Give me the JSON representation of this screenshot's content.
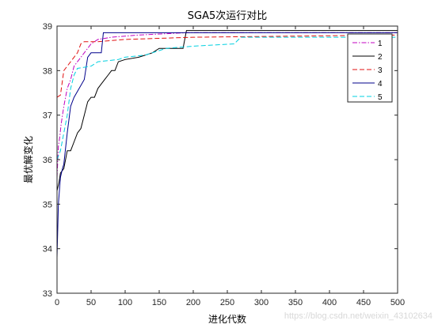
{
  "chart_data": {
    "type": "line",
    "title": "SGA5次运行对比",
    "xlabel": "进化代数",
    "ylabel": "最优解变化",
    "xlim": [
      0,
      500
    ],
    "ylim": [
      33,
      39
    ],
    "xticks": [
      0,
      50,
      100,
      150,
      200,
      250,
      300,
      350,
      400,
      450,
      500
    ],
    "yticks": [
      33,
      34,
      35,
      36,
      37,
      38,
      39
    ],
    "grid": false,
    "legend_position": "top-right",
    "series": [
      {
        "name": "1",
        "color": "#c000c0",
        "dash": "dashdot",
        "x": [
          0,
          2,
          4,
          6,
          8,
          10,
          15,
          20,
          25,
          30,
          40,
          50,
          60,
          80,
          120,
          190,
          500
        ],
        "y": [
          35.6,
          36.3,
          36.5,
          36.8,
          37.0,
          37.2,
          37.6,
          37.8,
          38.1,
          38.2,
          38.4,
          38.6,
          38.7,
          38.75,
          38.8,
          38.85,
          38.85
        ]
      },
      {
        "name": "2",
        "color": "#000000",
        "dash": "solid",
        "x": [
          0,
          3,
          5,
          10,
          15,
          20,
          25,
          30,
          35,
          40,
          45,
          50,
          55,
          60,
          65,
          70,
          75,
          80,
          85,
          90,
          100,
          120,
          130,
          140,
          150,
          185,
          190,
          500
        ],
        "y": [
          35.3,
          35.5,
          35.7,
          35.8,
          36.2,
          36.2,
          36.4,
          36.6,
          36.7,
          37.0,
          37.3,
          37.4,
          37.4,
          37.6,
          37.7,
          37.8,
          37.9,
          38.0,
          38.0,
          38.2,
          38.25,
          38.3,
          38.35,
          38.4,
          38.5,
          38.5,
          38.9,
          38.9
        ]
      },
      {
        "name": "3",
        "color": "#e01010",
        "dash": "dashed",
        "x": [
          0,
          5,
          10,
          15,
          20,
          25,
          30,
          35,
          40,
          60,
          100,
          200,
          500
        ],
        "y": [
          37.4,
          37.45,
          38.0,
          38.1,
          38.2,
          38.3,
          38.4,
          38.6,
          38.65,
          38.65,
          38.7,
          38.75,
          38.8
        ]
      },
      {
        "name": "4",
        "color": "#00008b",
        "dash": "solid",
        "x": [
          0,
          2,
          5,
          8,
          10,
          15,
          20,
          25,
          40,
          45,
          50,
          65,
          68,
          70,
          500
        ],
        "y": [
          33.8,
          35.0,
          35.6,
          35.8,
          35.9,
          36.6,
          37.2,
          37.4,
          37.8,
          38.3,
          38.4,
          38.4,
          38.85,
          38.85,
          38.85
        ]
      },
      {
        "name": "5",
        "color": "#00d0e0",
        "dash": "dashed",
        "x": [
          0,
          5,
          10,
          15,
          20,
          25,
          30,
          50,
          55,
          60,
          90,
          100,
          130,
          140,
          150,
          160,
          200,
          260,
          270,
          500
        ],
        "y": [
          36.0,
          36.2,
          36.6,
          37.0,
          37.6,
          37.9,
          38.05,
          38.1,
          38.15,
          38.2,
          38.25,
          38.3,
          38.35,
          38.4,
          38.45,
          38.5,
          38.55,
          38.6,
          38.75,
          38.75
        ]
      }
    ]
  },
  "watermark": "https://blog.csdn.net/weixin_43102634"
}
